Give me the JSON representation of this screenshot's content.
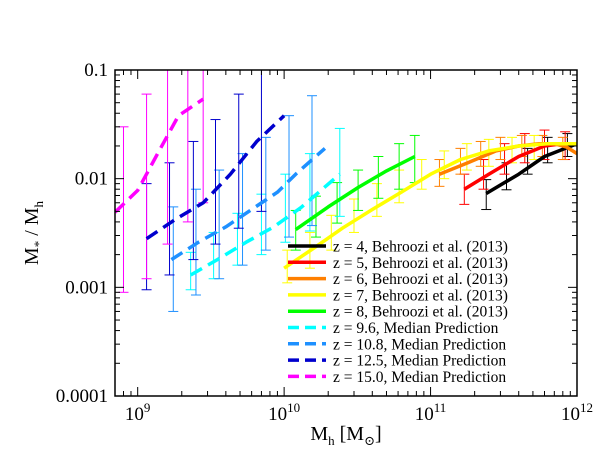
{
  "chart_data": {
    "type": "line",
    "xscale": "log",
    "yscale": "log",
    "xlim": [
      700000000.0,
      1000000000000.0
    ],
    "ylim": [
      0.0001,
      0.1
    ],
    "xlabel": {
      "main": "M",
      "sub": "h",
      "unit": "[M",
      "unit_sub": "⊙",
      "unit_close": "]"
    },
    "ylabel": {
      "main": "M",
      "sub1": "*",
      "sep": " / M",
      "sub2": "h"
    },
    "x_ticks": [
      {
        "value": 1000000000.0,
        "base": "10",
        "exp": "9"
      },
      {
        "value": 10000000000.0,
        "base": "10",
        "exp": "10"
      },
      {
        "value": 100000000000.0,
        "base": "10",
        "exp": "11"
      },
      {
        "value": 1000000000000.0,
        "base": "10",
        "exp": "12"
      }
    ],
    "y_ticks": [
      {
        "value": 0.0001,
        "label": "0.0001"
      },
      {
        "value": 0.001,
        "label": "0.001"
      },
      {
        "value": 0.01,
        "label": "0.01"
      },
      {
        "value": 0.1,
        "label": "0.1"
      }
    ],
    "legend_position": "bottom-right",
    "series": [
      {
        "name": "z = 4, Behroozi et al. (2013)",
        "color": "#000000",
        "style": "solid",
        "x": [
          240000000000.0,
          400000000000.0,
          600000000000.0,
          1000000000000.0
        ],
        "y": [
          0.0073,
          0.011,
          0.016,
          0.021
        ],
        "err_x": [
          240000000000.0,
          330000000000.0,
          460000000000.0,
          630000000000.0,
          860000000000.0
        ],
        "err_lo": [
          0.0052,
          0.0079,
          0.011,
          0.014,
          0.016
        ],
        "err_hi": [
          0.0098,
          0.014,
          0.019,
          0.024,
          0.026
        ]
      },
      {
        "name": "z = 5, Behroozi et al. (2013)",
        "color": "#ff0000",
        "style": "solid",
        "x": [
          170000000000.0,
          250000000000.0,
          400000000000.0,
          600000000000.0,
          800000000000.0,
          1000000000000.0
        ],
        "y": [
          0.008,
          0.011,
          0.016,
          0.02,
          0.021,
          0.021
        ],
        "err_x": [
          170000000000.0,
          230000000000.0,
          320000000000.0,
          440000000000.0,
          600000000000.0,
          830000000000.0
        ],
        "err_lo": [
          0.0058,
          0.008,
          0.011,
          0.014,
          0.015,
          0.015
        ],
        "err_hi": [
          0.011,
          0.015,
          0.021,
          0.026,
          0.028,
          0.027
        ]
      },
      {
        "name": "z = 6, Behroozi et al. (2013)",
        "color": "#ff7f00",
        "style": "solid",
        "x": [
          115000000000.0,
          180000000000.0,
          280000000000.0,
          400000000000.0,
          550000000000.0,
          700000000000.0,
          850000000000.0,
          1000000000000.0
        ],
        "y": [
          0.011,
          0.014,
          0.018,
          0.02,
          0.021,
          0.021,
          0.0195,
          0.017
        ],
        "err_x": [
          115000000000.0,
          160000000000.0,
          220000000000.0,
          300000000000.0,
          420000000000.0,
          580000000000.0,
          800000000000.0
        ],
        "err_lo": [
          0.0085,
          0.011,
          0.013,
          0.015,
          0.016,
          0.016,
          0.015
        ],
        "err_hi": [
          0.015,
          0.019,
          0.022,
          0.024,
          0.025,
          0.025,
          0.024
        ]
      },
      {
        "name": "z = 7, Behroozi et al. (2013)",
        "color": "#ffff00",
        "style": "solid",
        "x": [
          10000000000.0,
          16000000000.0,
          25000000000.0,
          40000000000.0,
          63000000000.0,
          100000000000.0,
          160000000000.0,
          250000000000.0,
          400000000000.0,
          630000000000.0,
          1000000000000.0
        ],
        "y": [
          0.0015,
          0.0023,
          0.0035,
          0.0052,
          0.0075,
          0.011,
          0.015,
          0.018,
          0.02,
          0.021,
          0.021
        ],
        "err_x": [
          10500000000.0,
          15000000000.0,
          21000000000.0,
          30000000000.0,
          43000000000.0,
          61000000000.0,
          87000000000.0,
          124000000000.0,
          177000000000.0,
          250000000000.0,
          360000000000.0,
          510000000000.0
        ],
        "err_lo": [
          0.0011,
          0.0015,
          0.0022,
          0.0032,
          0.0045,
          0.006,
          0.008,
          0.01,
          0.012,
          0.013,
          0.014,
          0.015
        ],
        "err_hi": [
          0.0022,
          0.0032,
          0.0046,
          0.0065,
          0.009,
          0.012,
          0.015,
          0.018,
          0.021,
          0.023,
          0.024,
          0.025
        ]
      },
      {
        "name": "z = 8, Behroozi et al. (2013)",
        "color": "#00ff00",
        "style": "solid",
        "x": [
          12000000000.0,
          20000000000.0,
          32000000000.0,
          50000000000.0,
          78000000000.0
        ],
        "y": [
          0.0034,
          0.0055,
          0.0083,
          0.0118,
          0.016
        ],
        "err_x": [
          12000000000.0,
          16500000000.0,
          23000000000.0,
          32000000000.0,
          44000000000.0,
          61000000000.0,
          78000000000.0
        ],
        "err_lo": [
          0.0022,
          0.0029,
          0.0039,
          0.0051,
          0.0066,
          0.008,
          0.0092
        ],
        "err_hi": [
          0.0051,
          0.0069,
          0.0092,
          0.012,
          0.016,
          0.021,
          0.025
        ]
      },
      {
        "name": "z = 9.6, Median Prediction",
        "color": "#00ffff",
        "style": "dashed",
        "x": [
          2300000000.0,
          3500000000.0,
          5500000000.0,
          8500000000.0,
          13000000000.0,
          24000000000.0
        ],
        "y": [
          0.0013,
          0.0018,
          0.0026,
          0.0036,
          0.0054,
          0.011
        ],
        "err_x": [
          2300000000.0,
          3300000000.0,
          4800000000.0,
          7000000000.0,
          10200000000.0,
          15000000000.0,
          24000000000.0
        ],
        "err_lo": [
          0.00095,
          0.0012,
          0.0016,
          0.002,
          0.0026,
          0.0033,
          0.0045
        ],
        "err_hi": [
          0.0021,
          0.0032,
          0.0048,
          0.0072,
          0.011,
          0.017,
          0.029
        ]
      },
      {
        "name": "z = 10.8, Median Prediction",
        "color": "#1e90ff",
        "style": "dashed",
        "x": [
          1700000000.0,
          2600000000.0,
          4000000000.0,
          6000000000.0,
          9000000000.0,
          12000000000.0,
          19000000000.0
        ],
        "y": [
          0.0018,
          0.0026,
          0.0036,
          0.0052,
          0.0075,
          0.011,
          0.019
        ],
        "err_x": [
          1750000000.0,
          2500000000.0,
          3600000000.0,
          5200000000.0,
          7500000000.0,
          10800000000.0,
          15500000000.0
        ],
        "err_lo": [
          0.0006,
          0.00085,
          0.0012,
          0.0016,
          0.0022,
          0.0029,
          0.0037
        ],
        "err_hi": [
          0.0055,
          0.008,
          0.012,
          0.017,
          0.024,
          0.038,
          0.058
        ]
      },
      {
        "name": "z = 12.5, Median Prediction",
        "color": "#0000cd",
        "style": "dashed",
        "x": [
          1150000000.0,
          1800000000.0,
          2800000000.0,
          4300000000.0,
          6500000000.0,
          10000000000.0
        ],
        "y": [
          0.0028,
          0.0042,
          0.006,
          0.011,
          0.022,
          0.038
        ],
        "err_x": [
          1150000000.0,
          1650000000.0,
          2400000000.0,
          3400000000.0,
          4900000000.0,
          7000000000.0
        ],
        "err_lo": [
          0.00095,
          0.0013,
          0.0018,
          0.0025,
          0.0035,
          0.005
        ],
        "err_hi": [
          0.009,
          0.014,
          0.022,
          0.035,
          0.06,
          0.1
        ]
      },
      {
        "name": "z = 15.0, Median Prediction",
        "color": "#ff00ff",
        "style": "dashed",
        "x": [
          700000000.0,
          1000000000.0,
          1400000000.0,
          1900000000.0,
          2800000000.0
        ],
        "y": [
          0.0049,
          0.0078,
          0.018,
          0.038,
          0.054
        ],
        "err_x": [
          800000000.0,
          1150000000.0,
          1600000000.0,
          2200000000.0,
          2800000000.0
        ],
        "err_lo": [
          0.0009,
          0.0012,
          0.0025,
          0.004,
          0.006
        ],
        "err_hi": [
          0.03,
          0.06,
          0.1,
          0.1,
          0.1
        ]
      }
    ]
  }
}
